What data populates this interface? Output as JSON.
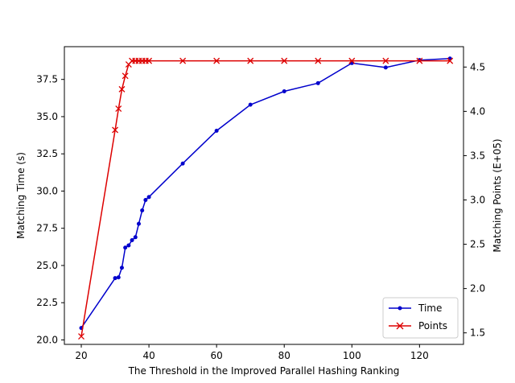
{
  "chart_data": {
    "type": "line",
    "xlabel": "The Threshold in the Improved Parallel Hashing Ranking",
    "ylabel_left": "Matching Time (s)",
    "ylabel_right": "Matching Points (E+05)",
    "xlim": [
      15,
      133
    ],
    "ylim_left": [
      19.7,
      39.7
    ],
    "ylim_right": [
      1.37,
      4.73
    ],
    "x_ticks": [
      20,
      40,
      60,
      80,
      100,
      120
    ],
    "y_ticks_left": [
      20.0,
      22.5,
      25.0,
      27.5,
      30.0,
      32.5,
      35.0,
      37.5
    ],
    "y_ticks_right": [
      1.5,
      2.0,
      2.5,
      3.0,
      3.5,
      4.0,
      4.5
    ],
    "grid": false,
    "legend_position": "lower-right",
    "series": [
      {
        "name": "Time",
        "axis": "left",
        "color": "#0000cc",
        "marker": "dot",
        "x": [
          20,
          30,
          31,
          32,
          33,
          34,
          35,
          36,
          37,
          38,
          39,
          40,
          50,
          60,
          70,
          80,
          90,
          100,
          110,
          120,
          129
        ],
        "values": [
          20.8,
          24.15,
          24.2,
          24.85,
          26.2,
          26.35,
          26.7,
          26.9,
          27.8,
          28.7,
          29.4,
          29.6,
          31.85,
          34.05,
          35.8,
          36.7,
          37.25,
          38.6,
          38.3,
          38.8,
          38.9
        ]
      },
      {
        "name": "Points",
        "axis": "right",
        "color": "#dd0000",
        "marker": "x",
        "x": [
          20,
          30,
          31,
          32,
          33,
          34,
          35,
          36,
          37,
          38,
          39,
          40,
          50,
          60,
          70,
          80,
          90,
          100,
          110,
          120,
          129
        ],
        "values": [
          1.46,
          3.79,
          4.03,
          4.25,
          4.4,
          4.53,
          4.57,
          4.57,
          4.57,
          4.57,
          4.57,
          4.57,
          4.57,
          4.57,
          4.57,
          4.57,
          4.57,
          4.57,
          4.57,
          4.57,
          4.57
        ]
      }
    ]
  }
}
